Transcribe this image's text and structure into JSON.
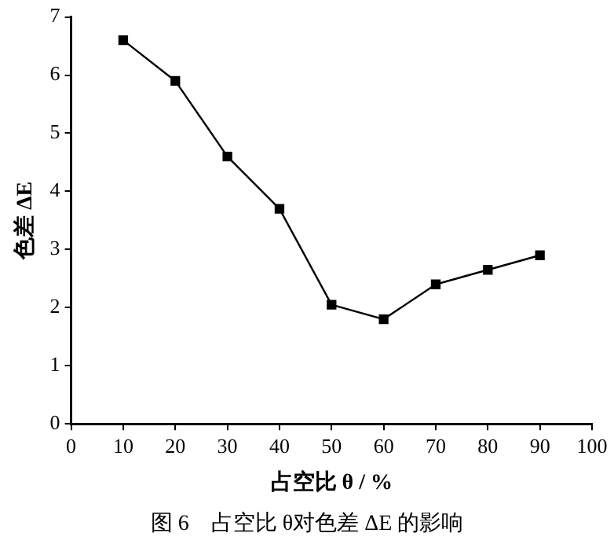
{
  "chart_data": {
    "type": "line",
    "xlabel": "占空比 θ / %",
    "ylabel": "色差 ΔE",
    "x": [
      10,
      20,
      30,
      40,
      50,
      60,
      70,
      80,
      90
    ],
    "series": [
      {
        "color": "#000000",
        "values": [
          6.6,
          5.9,
          4.6,
          3.7,
          2.05,
          1.8,
          2.4,
          2.65,
          2.9
        ]
      }
    ],
    "xlim": [
      0,
      100
    ],
    "xticks": [
      0,
      10,
      20,
      30,
      40,
      50,
      60,
      70,
      80,
      90,
      100
    ],
    "ylim": [
      0,
      7
    ],
    "yticks": [
      0,
      1,
      2,
      3,
      4,
      5,
      6,
      7
    ],
    "grid": false,
    "legend": false,
    "marker": "square",
    "line_style": "solid",
    "annotations": [
      "图 6　占空比 θ对色差 ΔE 的影响"
    ]
  }
}
